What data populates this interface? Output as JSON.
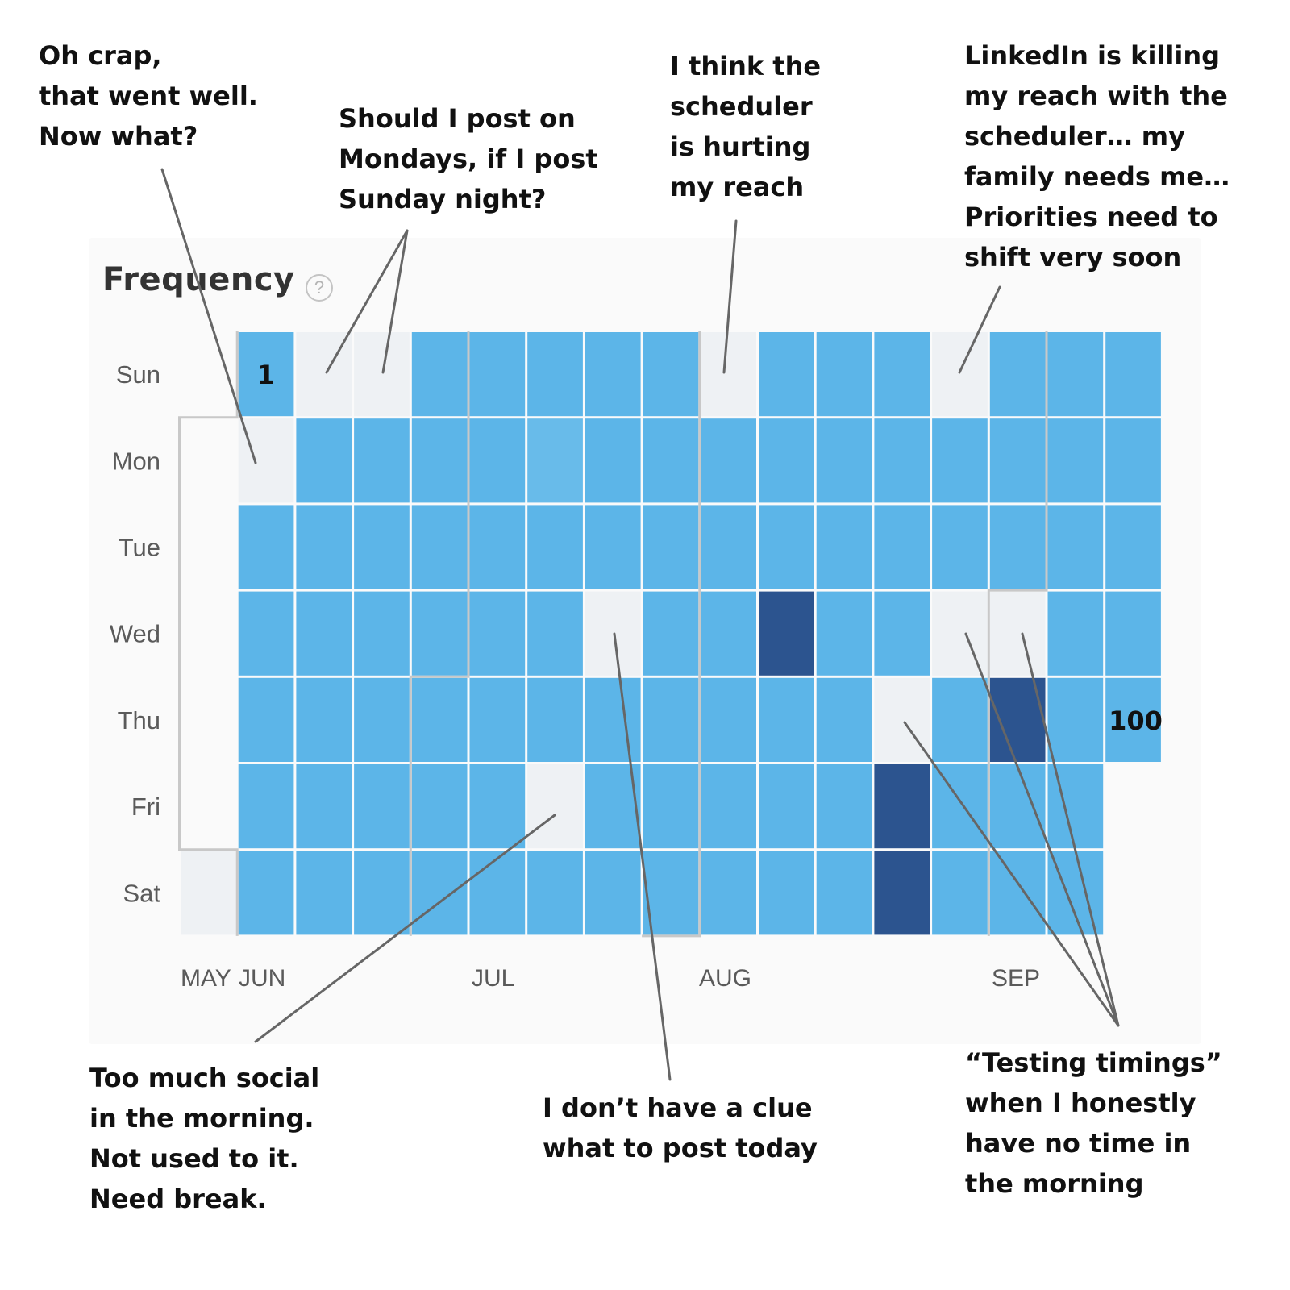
{
  "chart_title": "Frequency",
  "help_icon": {
    "icon": "question-circle-icon",
    "glyph": "?"
  },
  "chart_data": {
    "type": "heatmap",
    "title": "Frequency",
    "xlabel": "",
    "ylabel": "",
    "y_categories": [
      "Sun",
      "Mon",
      "Tue",
      "Wed",
      "Thu",
      "Fri",
      "Sat"
    ],
    "month_labels": [
      "MAY",
      "JUN",
      "JUL",
      "AUG",
      "SEP"
    ],
    "week_count": 17,
    "first_week_first_day": 6,
    "last_week_last_day": 4,
    "value_labels": [
      {
        "text": "1",
        "week": 1,
        "day": 0
      },
      {
        "text": "100",
        "week": 16,
        "day": 4
      }
    ],
    "value_scale": [
      "none",
      "low",
      "medium",
      "high"
    ],
    "cells": [
      [
        null,
        null,
        null,
        null,
        null,
        null,
        0
      ],
      [
        1,
        0,
        1,
        1,
        1,
        1,
        1
      ],
      [
        0,
        1,
        1,
        1,
        1,
        1,
        1
      ],
      [
        0,
        1,
        1,
        1,
        1,
        1,
        1
      ],
      [
        1,
        1,
        1,
        1,
        1,
        1,
        1
      ],
      [
        1,
        1,
        1,
        1,
        1,
        1,
        1
      ],
      [
        1,
        2,
        1,
        1,
        1,
        0,
        1
      ],
      [
        1,
        1,
        1,
        0,
        1,
        1,
        1
      ],
      [
        1,
        1,
        1,
        1,
        1,
        1,
        1
      ],
      [
        0,
        1,
        1,
        1,
        1,
        1,
        1
      ],
      [
        1,
        1,
        1,
        3,
        1,
        1,
        1
      ],
      [
        1,
        1,
        1,
        1,
        1,
        1,
        1
      ],
      [
        1,
        1,
        1,
        1,
        0,
        3,
        3
      ],
      [
        0,
        1,
        1,
        0,
        1,
        1,
        1
      ],
      [
        1,
        1,
        1,
        0,
        3,
        1,
        1
      ],
      [
        1,
        1,
        1,
        1,
        1,
        1,
        1
      ],
      [
        1,
        1,
        1,
        1,
        1,
        null,
        null
      ]
    ],
    "colors": {
      "none": "#eef1f4",
      "low": "#5cb5e8",
      "medium": "#68bbea",
      "high": "#2c548f",
      "grid": "#ffffff",
      "month_divider": "#c8c8c8",
      "axis_text": "#5a5a5a"
    }
  },
  "annotations": [
    {
      "id": "oh-crap",
      "lines": [
        "Oh crap,",
        "that went well.",
        "Now what?"
      ]
    },
    {
      "id": "mondays",
      "lines": [
        "Should I post on",
        "Mondays, if I post",
        "Sunday night?"
      ]
    },
    {
      "id": "scheduler",
      "lines": [
        "I think the",
        "scheduler",
        "is hurting",
        "my reach"
      ]
    },
    {
      "id": "linkedin",
      "lines": [
        "LinkedIn is killing",
        "my reach with the",
        "scheduler… my",
        "family needs me…",
        "Priorities need to",
        "shift very soon"
      ]
    },
    {
      "id": "too-much-social",
      "lines": [
        "Too much social",
        "in the morning.",
        "Not used to it.",
        "Need break."
      ]
    },
    {
      "id": "no-clue",
      "lines": [
        "I don’t have a clue",
        "what to post today"
      ]
    },
    {
      "id": "testing-timings",
      "lines": [
        "“Testing timings”",
        "when I honestly",
        "have no time in",
        "the morning"
      ]
    }
  ]
}
